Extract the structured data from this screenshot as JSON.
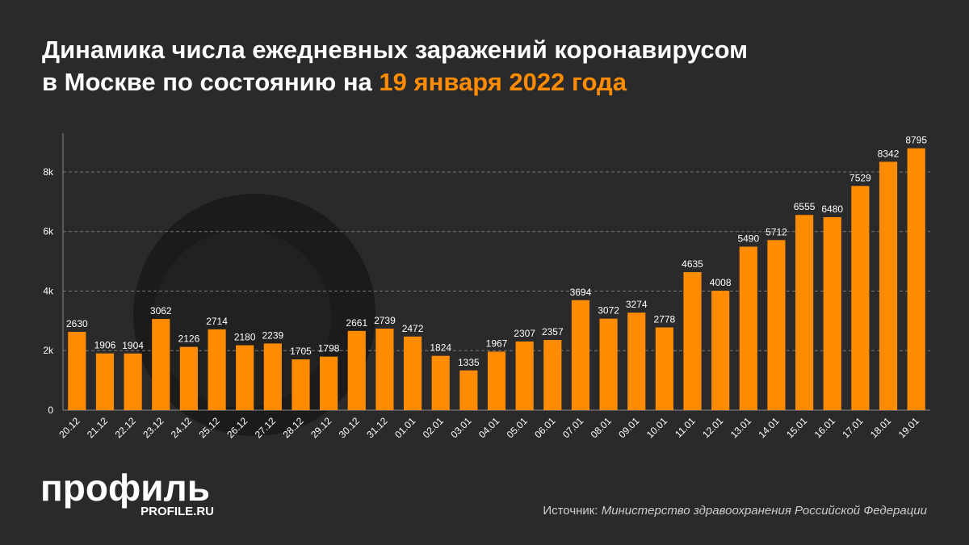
{
  "chart_data": {
    "type": "bar",
    "title": "Динамика числа ежедневных заражений коронавирусом в Москве по состоянию на",
    "title_date": "19 января 2022 года",
    "categories": [
      "20.12",
      "21.12",
      "22.12",
      "23.12",
      "24.12",
      "25.12",
      "26.12",
      "27.12",
      "28.12",
      "29.12",
      "30.12",
      "31.12",
      "01.01",
      "02.01",
      "03.01",
      "04.01",
      "05.01",
      "06.01",
      "07.01",
      "08.01",
      "09.01",
      "10.01",
      "11.01",
      "12.01",
      "13.01",
      "14.01",
      "15.01",
      "16.01",
      "17.01",
      "18.01",
      "19.01"
    ],
    "values": [
      2630,
      1906,
      1904,
      3062,
      2126,
      2714,
      2180,
      2239,
      1705,
      1798,
      2661,
      2739,
      2472,
      1824,
      1335,
      1967,
      2307,
      2357,
      3694,
      3072,
      3274,
      2778,
      4635,
      4008,
      5490,
      5712,
      6555,
      6480,
      7529,
      8342,
      8795
    ],
    "color": "#ff8c00",
    "ylim": [
      0,
      9300
    ],
    "yticks": [
      0,
      {
        "value": 2000,
        "label": "2k"
      },
      {
        "value": 4000,
        "label": "4k"
      },
      {
        "value": 6000,
        "label": "6k"
      },
      {
        "value": 8000,
        "label": "8k"
      }
    ],
    "grid": true,
    "logo": "профиль",
    "logo_site": "PROFILE.RU",
    "source_label": "Источник:",
    "source": "Министерство здравоохранения Российской Федерации"
  }
}
